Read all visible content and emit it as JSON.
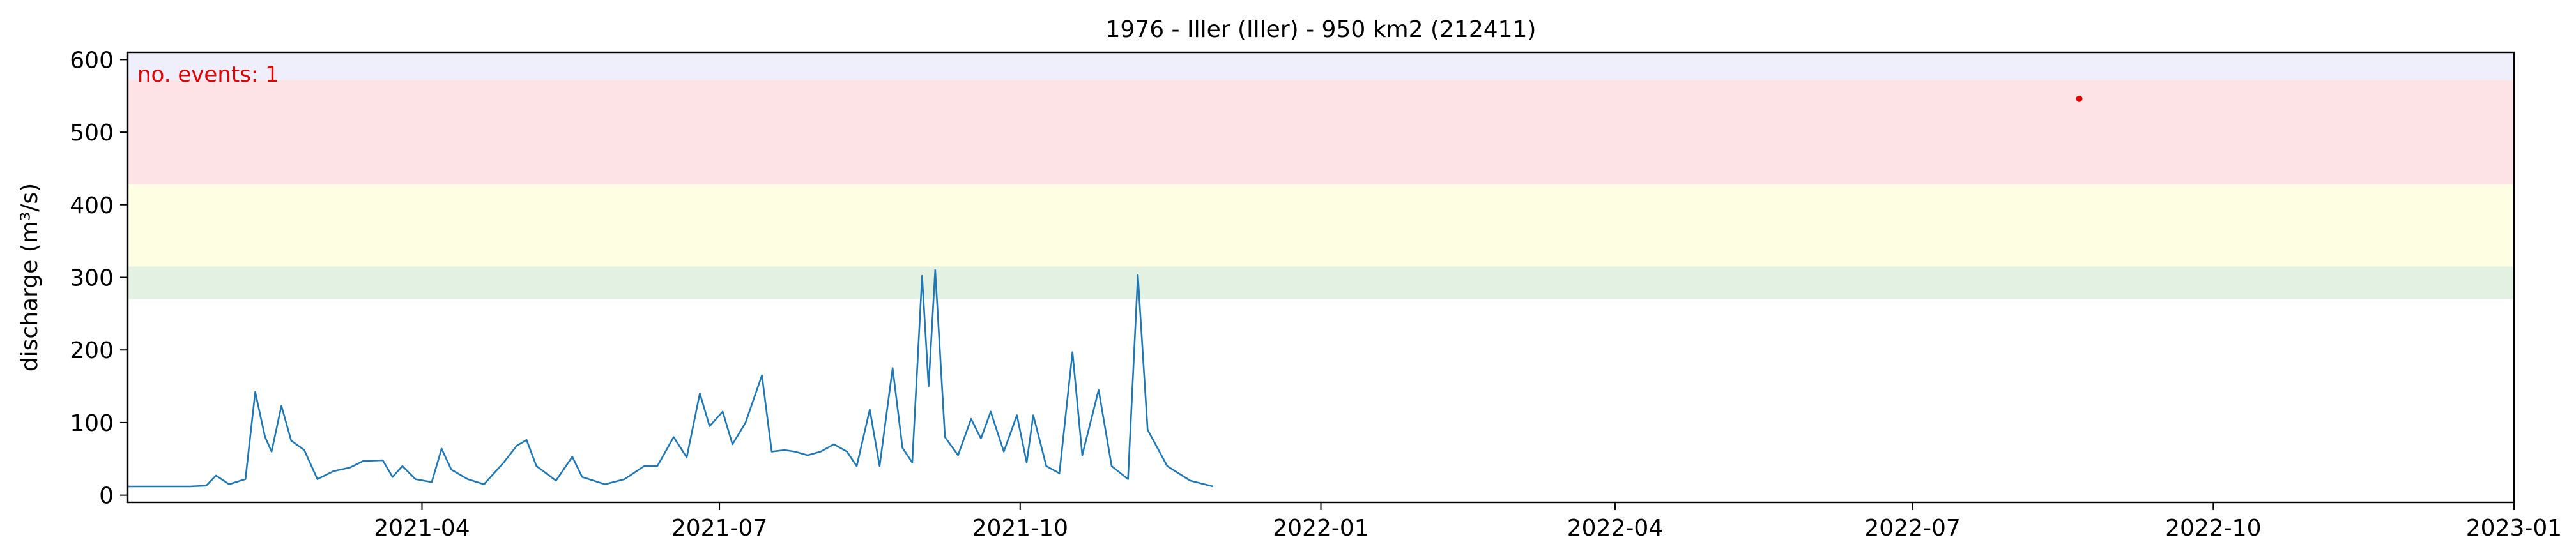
{
  "chart_data": {
    "type": "line",
    "title": "1976 - Iller (Iller) - 950 km2 (212411)",
    "xlabel": "",
    "ylabel": "discharge (m³/s)",
    "xlim": [
      "2021-01-01",
      "2023-01-01"
    ],
    "ylim": [
      -10,
      610
    ],
    "y_ticks": [
      0,
      100,
      200,
      300,
      400,
      500,
      600
    ],
    "x_ticks": [
      "2021-04-01",
      "2021-07-01",
      "2021-10-01",
      "2022-01-01",
      "2022-04-01",
      "2022-07-01",
      "2022-10-01",
      "2023-01-01"
    ],
    "x_tick_labels": [
      "2021-04",
      "2021-07",
      "2021-10",
      "2022-01",
      "2022-04",
      "2022-07",
      "2022-10",
      "2023-01"
    ],
    "annotation": "no. events: 1",
    "threshold_bands": [
      {
        "from": 270,
        "to": 315,
        "color": "#e3f1e3"
      },
      {
        "from": 315,
        "to": 428,
        "color": "#fefee3"
      },
      {
        "from": 428,
        "to": 572,
        "color": "#fde3e6"
      },
      {
        "from": 572,
        "to": 610,
        "color": "#efeefb"
      }
    ],
    "events": [
      {
        "date": "2022-08-21",
        "value": 546
      }
    ],
    "series": [
      {
        "color": "#1f77b4",
        "points": [
          [
            "2021-01-01",
            12
          ],
          [
            "2021-01-10",
            12
          ],
          [
            "2021-01-20",
            12
          ],
          [
            "2021-01-25",
            13
          ],
          [
            "2021-01-28",
            27
          ],
          [
            "2021-02-01",
            15
          ],
          [
            "2021-02-06",
            22
          ],
          [
            "2021-02-09",
            142
          ],
          [
            "2021-02-12",
            80
          ],
          [
            "2021-02-14",
            60
          ],
          [
            "2021-02-17",
            123
          ],
          [
            "2021-02-20",
            75
          ],
          [
            "2021-02-24",
            62
          ],
          [
            "2021-02-28",
            22
          ],
          [
            "2021-03-05",
            33
          ],
          [
            "2021-03-10",
            38
          ],
          [
            "2021-03-14",
            47
          ],
          [
            "2021-03-20",
            48
          ],
          [
            "2021-03-23",
            25
          ],
          [
            "2021-03-26",
            40
          ],
          [
            "2021-03-30",
            22
          ],
          [
            "2021-04-04",
            18
          ],
          [
            "2021-04-07",
            64
          ],
          [
            "2021-04-10",
            35
          ],
          [
            "2021-04-15",
            22
          ],
          [
            "2021-04-20",
            15
          ],
          [
            "2021-04-26",
            45
          ],
          [
            "2021-04-30",
            68
          ],
          [
            "2021-05-03",
            76
          ],
          [
            "2021-05-06",
            40
          ],
          [
            "2021-05-12",
            20
          ],
          [
            "2021-05-17",
            53
          ],
          [
            "2021-05-20",
            25
          ],
          [
            "2021-05-27",
            15
          ],
          [
            "2021-06-02",
            22
          ],
          [
            "2021-06-08",
            40
          ],
          [
            "2021-06-12",
            40
          ],
          [
            "2021-06-17",
            80
          ],
          [
            "2021-06-21",
            52
          ],
          [
            "2021-06-25",
            140
          ],
          [
            "2021-06-28",
            95
          ],
          [
            "2021-07-02",
            115
          ],
          [
            "2021-07-05",
            70
          ],
          [
            "2021-07-09",
            100
          ],
          [
            "2021-07-14",
            165
          ],
          [
            "2021-07-17",
            60
          ],
          [
            "2021-07-21",
            62
          ],
          [
            "2021-07-24",
            60
          ],
          [
            "2021-07-28",
            55
          ],
          [
            "2021-08-01",
            60
          ],
          [
            "2021-08-05",
            70
          ],
          [
            "2021-08-09",
            60
          ],
          [
            "2021-08-12",
            40
          ],
          [
            "2021-08-16",
            118
          ],
          [
            "2021-08-19",
            40
          ],
          [
            "2021-08-23",
            175
          ],
          [
            "2021-08-26",
            65
          ],
          [
            "2021-08-29",
            45
          ],
          [
            "2021-09-01",
            302
          ],
          [
            "2021-09-03",
            150
          ],
          [
            "2021-09-05",
            310
          ],
          [
            "2021-09-08",
            80
          ],
          [
            "2021-09-12",
            55
          ],
          [
            "2021-09-16",
            105
          ],
          [
            "2021-09-19",
            78
          ],
          [
            "2021-09-22",
            115
          ],
          [
            "2021-09-26",
            60
          ],
          [
            "2021-09-30",
            110
          ],
          [
            "2021-10-03",
            45
          ],
          [
            "2021-10-05",
            110
          ],
          [
            "2021-10-09",
            40
          ],
          [
            "2021-10-13",
            30
          ],
          [
            "2021-10-17",
            197
          ],
          [
            "2021-10-20",
            55
          ],
          [
            "2021-10-25",
            145
          ],
          [
            "2021-10-29",
            40
          ],
          [
            "2021-11-03",
            22
          ],
          [
            "2021-11-06",
            303
          ],
          [
            "2021-11-09",
            90
          ],
          [
            "2021-11-15",
            40
          ],
          [
            "2021-11-22",
            20
          ],
          [
            "2021-11-29",
            12
          ]
        ]
      }
    ]
  }
}
